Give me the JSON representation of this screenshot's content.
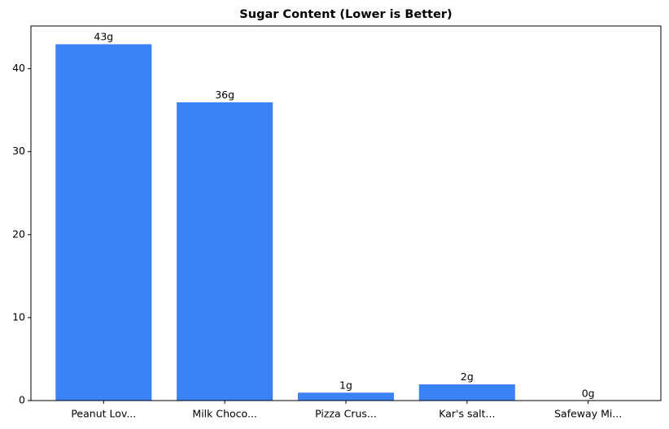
{
  "chart_data": {
    "type": "bar",
    "title": "Sugar Content (Lower is Better)",
    "categories": [
      "Peanut Lov...",
      "Milk Choco...",
      "Pizza Crus...",
      "Kar's salt...",
      "Safeway Mi..."
    ],
    "values": [
      43,
      36,
      1,
      2,
      0
    ],
    "value_labels": [
      "43g",
      "36g",
      "1g",
      "2g",
      "0g"
    ],
    "color": "#3b82f6",
    "ylim": [
      0,
      45.15
    ],
    "yticks": [
      0,
      10,
      20,
      30,
      40
    ]
  }
}
